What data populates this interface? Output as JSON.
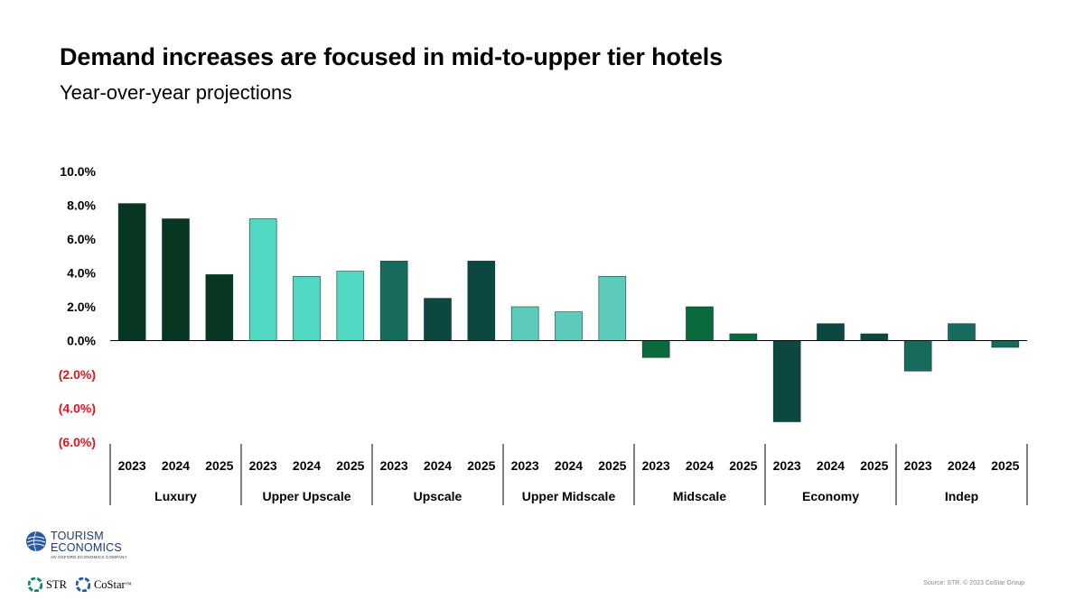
{
  "header": {
    "title": "Demand increases are focused in mid-to-upper tier hotels",
    "subtitle": "Year-over-year projections"
  },
  "chart_data": {
    "type": "bar",
    "y_ticks": [
      "10.0%",
      "8.0%",
      "6.0%",
      "4.0%",
      "2.0%",
      "0.0%",
      "(2.0%)",
      "(4.0%)",
      "(6.0%)"
    ],
    "y_tick_values": [
      10,
      8,
      6,
      4,
      2,
      0,
      -2,
      -4,
      -6
    ],
    "ylim": [
      -6,
      10
    ],
    "negative_tick_color": "#e0141e",
    "years": [
      "2023",
      "2024",
      "2025"
    ],
    "groups": [
      {
        "name": "Luxury",
        "values": [
          8.1,
          7.2,
          3.9
        ],
        "colors": [
          "#073622",
          "#073622",
          "#073622"
        ]
      },
      {
        "name": "Upper Upscale",
        "values": [
          7.2,
          3.8,
          4.1
        ],
        "colors": [
          "#52d8c2",
          "#52d8c2",
          "#52d8c2"
        ]
      },
      {
        "name": "Upscale",
        "values": [
          4.7,
          2.5,
          4.7
        ],
        "colors": [
          "#176b5c",
          "#0d4840",
          "#0d4840"
        ]
      },
      {
        "name": "Upper Midscale",
        "values": [
          2.0,
          1.7,
          3.8
        ],
        "colors": [
          "#5ccbb9",
          "#5ccbb9",
          "#5ccbb9"
        ]
      },
      {
        "name": "Midscale",
        "values": [
          -1.0,
          2.0,
          0.4
        ],
        "colors": [
          "#0b6a3c",
          "#0b6a3c",
          "#0b6a3c"
        ]
      },
      {
        "name": "Economy",
        "values": [
          -4.8,
          1.0,
          0.4
        ],
        "colors": [
          "#0d4840",
          "#0d4840",
          "#0d4840"
        ]
      },
      {
        "name": "Indep",
        "values": [
          -1.8,
          1.0,
          -0.4
        ],
        "colors": [
          "#176b5c",
          "#176b5c",
          "#176b5c"
        ]
      }
    ],
    "grid": false,
    "legend": "none"
  },
  "footer": {
    "te_line1": "TOURISM",
    "te_line2": "ECONOMICS",
    "te_line3": "AN OXFORD ECONOMICS COMPANY",
    "str_label": "STR",
    "costar_label": "CoStar",
    "costar_tm": "™",
    "source": "Source: STR. © 2023 CoStar Group"
  }
}
